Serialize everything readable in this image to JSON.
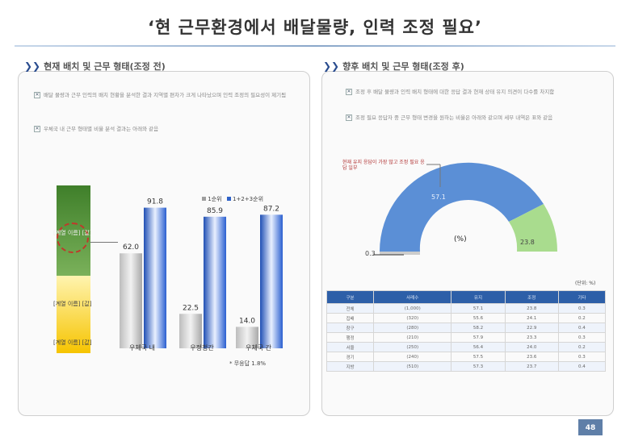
{
  "title": "‘현 근무환경에서 배달물량, 인력 조정 필요’",
  "left_panel": {
    "heading": "현재 배치 및 근무 형태(조정 전)",
    "bullets": [
      "배달 물량과 근무 인력의 배치 현황을 분석한 결과 지역별 편차가 크게 나타났으며 인력 조정의 필요성이 제기됨",
      "우체국 내 근무 형태별 비율 분석 결과는 아래와 같음"
    ],
    "legend": [
      "1순위",
      "1+2+3순위"
    ],
    "data_labels": [
      "91.8",
      "85.9",
      "87.2",
      "62.0",
      "22.5",
      "14.0"
    ],
    "side_labels": [
      "[계열 이름] [값]",
      "[계열 이름] [값]",
      "[계열 이름] [값]"
    ],
    "footnote": "* 무응답 1.8%"
  },
  "right_panel": {
    "heading": "향후 배치 및 근무 형태(조정 후)",
    "bullets": [
      "조정 후 배달 물량과 인력 배치 형태에 대한 응답 결과 현재 상태 유지 의견이 다수를 차지함",
      "조정 필요 응답자 중 근무 형태 변경을 원하는 비율은 아래와 같으며 세부 내역은 표와 같음"
    ],
    "gauge_unit": "(%)",
    "gauge_labels": [
      "0.3",
      "23.8"
    ],
    "gauge_main_label": "57.1",
    "gauge_note": "현재 유지 응답이 가장 많고 조정 필요 응답 일부",
    "unit_label": "(단위: %)",
    "table": {
      "header": [
        "구분",
        "사례수",
        "유지",
        "조정",
        "기타"
      ],
      "rows": [
        [
          "전체",
          "(1,000)",
          "57.1",
          "23.8",
          "0.3"
        ],
        [
          "집배",
          "(320)",
          "55.6",
          "24.1",
          "0.2"
        ],
        [
          "창구",
          "(280)",
          "58.2",
          "22.9",
          "0.4"
        ],
        [
          "행정",
          "(210)",
          "57.9",
          "23.3",
          "0.3"
        ],
        [
          "서울",
          "(250)",
          "56.4",
          "24.0",
          "0.2"
        ],
        [
          "경기",
          "(240)",
          "57.5",
          "23.6",
          "0.3"
        ],
        [
          "지방",
          "(510)",
          "57.3",
          "23.7",
          "0.4"
        ]
      ]
    }
  },
  "chart_data": {
    "type": "bar",
    "title": "",
    "categories": [
      "우체국 내",
      "우정청간",
      "우체국 간"
    ],
    "series": [
      {
        "name": "1순위",
        "values": [
          62.0,
          22.5,
          14.0
        ]
      },
      {
        "name": "1+2+3순위",
        "values": [
          91.8,
          85.9,
          87.2
        ]
      }
    ],
    "ylim": [
      0,
      100
    ],
    "xlabel": "",
    "ylabel": "",
    "colors": {
      "s1": "#9e9e9e",
      "s2": "#2f62c8"
    }
  },
  "page_number": "48"
}
